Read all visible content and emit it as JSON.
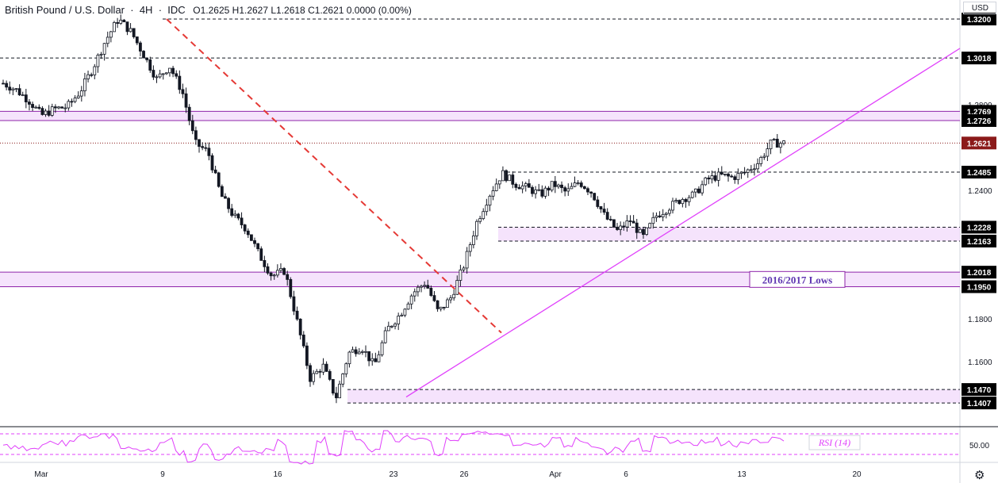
{
  "header": {
    "symbol": "British Pound / U.S. Dollar",
    "interval": "4H",
    "exchange": "IDC",
    "ohlc": "O1.2625  H1.2627  L1.2618  C1.2621  0.0000 (0.00%)",
    "currency": "USD"
  },
  "chart_data": {
    "type": "candlestick",
    "title": "British Pound / U.S. Dollar  4H  IDC",
    "ylim": [
      1.13,
      1.325
    ],
    "y_ticks": [
      "1.2800",
      "1.2400",
      "1.1800",
      "1.1600"
    ],
    "x_ticks": [
      "Mar",
      "9",
      "16",
      "23",
      "26",
      "Apr",
      "6",
      "13",
      "20"
    ],
    "price_path": [
      1.29,
      1.287,
      1.282,
      1.275,
      1.278,
      1.279,
      1.286,
      1.297,
      1.31,
      1.32,
      1.314,
      1.303,
      1.292,
      1.298,
      1.286,
      1.262,
      1.258,
      1.238,
      1.228,
      1.222,
      1.21,
      1.2,
      1.2025,
      1.178,
      1.152,
      1.158,
      1.143,
      1.164,
      1.167,
      1.158,
      1.175,
      1.182,
      1.192,
      1.197,
      1.183,
      1.19,
      1.205,
      1.225,
      1.238,
      1.248,
      1.243,
      1.241,
      1.238,
      1.243,
      1.239,
      1.244,
      1.239,
      1.228,
      1.221,
      1.226,
      1.218,
      1.228,
      1.232,
      1.236,
      1.238,
      1.245,
      1.247,
      1.246,
      1.2485,
      1.253,
      1.262,
      1.2621
    ],
    "horizontal_levels": [
      {
        "value": 1.32,
        "label": "1.3200",
        "style": "dashed"
      },
      {
        "value": 1.3018,
        "label": "1.3018",
        "style": "dashed"
      },
      {
        "value": 1.2769,
        "label": "1.2769",
        "style": "solid"
      },
      {
        "value": 1.2726,
        "label": "1.2726",
        "style": "solid"
      },
      {
        "value": 1.2621,
        "label": "1.2621",
        "style": "dotted",
        "current": true
      },
      {
        "value": 1.2485,
        "label": "1.2485",
        "style": "dashed"
      },
      {
        "value": 1.2228,
        "label": "1.2228",
        "style": "dashed"
      },
      {
        "value": 1.2163,
        "label": "1.2163",
        "style": "dashed"
      },
      {
        "value": 1.2018,
        "label": "1.2018",
        "style": "solid"
      },
      {
        "value": 1.195,
        "label": "1.1950",
        "style": "solid"
      },
      {
        "value": 1.147,
        "label": "1.1470",
        "style": "dashed"
      },
      {
        "value": 1.1407,
        "label": "1.1407",
        "style": "dashed"
      }
    ],
    "zones": [
      {
        "from": 1.2726,
        "to": 1.2769
      },
      {
        "from": 1.2163,
        "to": 1.2228
      },
      {
        "from": 1.195,
        "to": 1.2018
      },
      {
        "from": 1.1407,
        "to": 1.147
      }
    ],
    "annotation": "2016/2017 Lows",
    "rsi": {
      "label": "RSI (14)",
      "tick": "50.00"
    },
    "colors": {
      "candle": "#131722",
      "zone": "#f2dcfb",
      "zone_line": "#8e24aa",
      "trendline": "#e040fb",
      "downtrend": "#e53935",
      "current_price": "#8b1a1a",
      "label_bg": "#000000"
    }
  }
}
